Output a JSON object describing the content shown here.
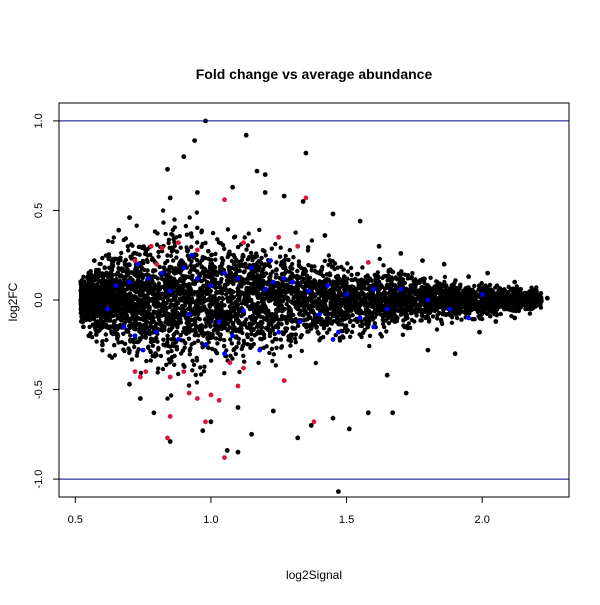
{
  "chart_data": {
    "type": "scatter",
    "title": "Fold change vs average abundance",
    "xlabel": "log2Signal",
    "ylabel": "log2FC",
    "xlim": [
      0.44,
      2.32
    ],
    "ylim": [
      -1.1,
      1.1
    ],
    "x_ticks": [
      0.5,
      1.0,
      1.5,
      2.0
    ],
    "x_tick_labels": [
      "0.5",
      "1.0",
      "1.5",
      "2.0"
    ],
    "y_ticks": [
      -1.0,
      -0.5,
      0.0,
      0.5,
      1.0
    ],
    "y_tick_labels": [
      "-1.0",
      "-0.5",
      "0.0",
      "0.5",
      "1.0"
    ],
    "grid": false,
    "legend": "none",
    "reference_lines": {
      "y": [
        1.0,
        -1.0
      ],
      "color": "#00008b"
    },
    "colors": {
      "base": "#000000",
      "highlight_blue": "#0000ff",
      "highlight_red": "#dc143c"
    },
    "series": [
      {
        "color": "#000000",
        "points": [
          [
            0.98,
            1.0
          ],
          [
            0.94,
            0.89
          ],
          [
            1.13,
            0.92
          ],
          [
            1.35,
            0.82
          ],
          [
            0.9,
            0.8
          ],
          [
            0.84,
            0.73
          ],
          [
            1.17,
            0.72
          ],
          [
            1.2,
            0.7
          ],
          [
            1.08,
            0.63
          ],
          [
            0.95,
            0.6
          ],
          [
            1.2,
            0.6
          ],
          [
            1.27,
            0.58
          ],
          [
            0.85,
            0.57
          ],
          [
            1.34,
            0.55
          ],
          [
            1.55,
            0.44
          ],
          [
            0.7,
            0.46
          ],
          [
            1.45,
            0.48
          ],
          [
            0.66,
            0.39
          ],
          [
            1.62,
            0.3
          ],
          [
            1.42,
            0.36
          ],
          [
            1.47,
            -1.07
          ],
          [
            1.06,
            -0.84
          ],
          [
            1.1,
            -0.85
          ],
          [
            0.85,
            -0.79
          ],
          [
            0.97,
            -0.73
          ],
          [
            1.23,
            -0.62
          ],
          [
            1.32,
            -0.77
          ],
          [
            1.45,
            -0.66
          ],
          [
            1.51,
            -0.72
          ],
          [
            1.67,
            -0.63
          ],
          [
            1.72,
            -0.52
          ],
          [
            1.65,
            -0.42
          ],
          [
            1.58,
            -0.63
          ],
          [
            0.74,
            -0.55
          ],
          [
            0.7,
            -0.47
          ],
          [
            0.79,
            -0.63
          ],
          [
            1.9,
            -0.3
          ],
          [
            1.8,
            -0.28
          ],
          [
            1.99,
            -0.18
          ],
          [
            2.05,
            -0.12
          ],
          [
            2.12,
            -0.1
          ],
          [
            2.18,
            -0.05
          ],
          [
            2.24,
            0.01
          ],
          [
            2.2,
            0.05
          ],
          [
            2.12,
            0.1
          ],
          [
            2.02,
            0.15
          ],
          [
            1.95,
            0.13
          ],
          [
            1.86,
            0.2
          ],
          [
            1.78,
            0.22
          ],
          [
            1.7,
            0.26
          ],
          [
            0.55,
            -0.2
          ],
          [
            0.53,
            -0.15
          ],
          [
            0.52,
            0.1
          ],
          [
            0.55,
            0.15
          ],
          [
            0.57,
            0.22
          ],
          [
            0.6,
            -0.25
          ],
          [
            1.0,
            -0.68
          ],
          [
            1.1,
            -0.6
          ],
          [
            1.15,
            -0.75
          ],
          [
            1.37,
            -0.7
          ]
        ]
      },
      {
        "color": "#0000ff",
        "points": [
          [
            0.62,
            -0.05
          ],
          [
            0.65,
            0.08
          ],
          [
            0.68,
            -0.15
          ],
          [
            0.7,
            0.1
          ],
          [
            0.72,
            -0.2
          ],
          [
            0.75,
            -0.28
          ],
          [
            0.77,
            0.12
          ],
          [
            0.8,
            -0.18
          ],
          [
            0.82,
            0.15
          ],
          [
            0.85,
            0.05
          ],
          [
            0.88,
            -0.22
          ],
          [
            0.9,
            0.18
          ],
          [
            0.92,
            -0.08
          ],
          [
            0.95,
            0.12
          ],
          [
            0.98,
            -0.25
          ],
          [
            1.0,
            0.08
          ],
          [
            1.03,
            -0.12
          ],
          [
            1.05,
            0.15
          ],
          [
            1.08,
            -0.2
          ],
          [
            1.1,
            0.12
          ],
          [
            1.12,
            -0.06
          ],
          [
            1.15,
            0.18
          ],
          [
            1.18,
            -0.28
          ],
          [
            1.2,
            0.06
          ],
          [
            1.23,
            0.1
          ],
          [
            1.25,
            -0.18
          ],
          [
            1.27,
            0.12
          ],
          [
            1.3,
            0.1
          ],
          [
            1.33,
            -0.12
          ],
          [
            1.36,
            0.05
          ],
          [
            1.4,
            -0.08
          ],
          [
            1.43,
            0.08
          ],
          [
            1.47,
            -0.18
          ],
          [
            1.5,
            0.03
          ],
          [
            1.55,
            -0.1
          ],
          [
            1.6,
            0.06
          ],
          [
            1.65,
            -0.05
          ],
          [
            1.7,
            0.06
          ],
          [
            1.8,
            0.0
          ],
          [
            1.88,
            -0.05
          ],
          [
            1.95,
            -0.1
          ],
          [
            2.0,
            0.03
          ],
          [
            1.05,
            -0.3
          ],
          [
            0.93,
            0.25
          ],
          [
            1.22,
            0.22
          ],
          [
            1.45,
            -0.22
          ],
          [
            0.73,
            0.2
          ],
          [
            1.6,
            -0.15
          ]
        ]
      },
      {
        "color": "#dc143c",
        "points": [
          [
            0.78,
            0.3
          ],
          [
            0.8,
            0.2
          ],
          [
            0.82,
            0.29
          ],
          [
            0.72,
            0.22
          ],
          [
            0.88,
            0.32
          ],
          [
            0.95,
            0.28
          ],
          [
            1.05,
            0.56
          ],
          [
            1.12,
            0.32
          ],
          [
            1.25,
            0.35
          ],
          [
            1.35,
            0.57
          ],
          [
            1.32,
            0.3
          ],
          [
            1.58,
            0.21
          ],
          [
            0.72,
            -0.4
          ],
          [
            0.74,
            -0.43
          ],
          [
            0.76,
            -0.4
          ],
          [
            0.85,
            -0.43
          ],
          [
            0.92,
            -0.52
          ],
          [
            0.95,
            -0.55
          ],
          [
            1.0,
            -0.53
          ],
          [
            1.03,
            -0.56
          ],
          [
            1.07,
            -0.35
          ],
          [
            1.1,
            -0.48
          ],
          [
            1.27,
            -0.45
          ],
          [
            0.85,
            -0.65
          ],
          [
            0.84,
            -0.77
          ],
          [
            0.98,
            -0.68
          ],
          [
            1.05,
            -0.88
          ],
          [
            1.38,
            -0.68
          ],
          [
            0.9,
            -0.4
          ],
          [
            1.12,
            -0.38
          ]
        ]
      }
    ],
    "dense_band": {
      "color": "#000000",
      "x_range": [
        0.52,
        2.22
      ],
      "center": 0.0,
      "halfwidth_profile": [
        [
          0.52,
          0.12
        ],
        [
          0.65,
          0.3
        ],
        [
          0.85,
          0.42
        ],
        [
          1.0,
          0.4
        ],
        [
          1.2,
          0.33
        ],
        [
          1.5,
          0.22
        ],
        [
          1.8,
          0.14
        ],
        [
          2.0,
          0.1
        ],
        [
          2.22,
          0.05
        ]
      ]
    }
  }
}
